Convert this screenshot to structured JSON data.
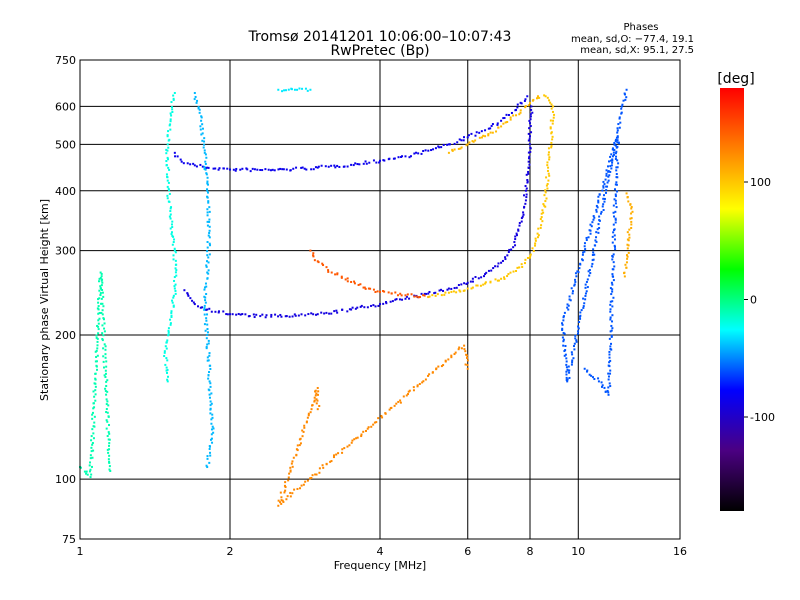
{
  "chart_data": {
    "type": "scatter",
    "title": "Tromsø 20141201 10:06:00–10:07:43",
    "subtitle": "RwPretec (Bp)",
    "xlabel": "Frequency [MHz]",
    "ylabel": "Stationary phase Virtual Height [km]",
    "x_scale": "log",
    "y_scale": "log",
    "xlim": [
      1,
      16
    ],
    "ylim": [
      75,
      750
    ],
    "x_ticks": [
      1,
      2,
      4,
      6,
      8,
      10,
      16
    ],
    "y_ticks": [
      75,
      100,
      200,
      300,
      400,
      500,
      600,
      750
    ],
    "grid": true,
    "stats": {
      "heading": "Phases",
      "line_o": "mean, sd,O: −77.4, 19.1",
      "line_x": "mean, sd,X:  95.1, 27.5"
    },
    "colorbar": {
      "label": "[deg]",
      "range": [
        -180,
        180
      ],
      "ticks": [
        100,
        0,
        -100
      ],
      "colors": [
        "#ff0000",
        "#ff8000",
        "#ffff00",
        "#00ff00",
        "#00ffff",
        "#0000ff",
        "#4b0082",
        "#000000"
      ]
    },
    "series": [
      {
        "points": [
          [
            1.55,
            480
          ],
          [
            1.6,
            460
          ],
          [
            1.7,
            452
          ],
          [
            1.8,
            447
          ],
          [
            2.0,
            443
          ],
          [
            2.3,
            442
          ],
          [
            2.6,
            443
          ],
          [
            3.0,
            447
          ],
          [
            3.5,
            453
          ],
          [
            4.0,
            462
          ],
          [
            4.5,
            472
          ],
          [
            5.0,
            485
          ],
          [
            5.5,
            500
          ],
          [
            6.0,
            517
          ],
          [
            6.5,
            535
          ],
          [
            7.0,
            560
          ],
          [
            7.5,
            590
          ],
          [
            7.9,
            630
          ]
        ],
        "phase": -85
      },
      {
        "points": [
          [
            1.62,
            248
          ],
          [
            1.7,
            232
          ],
          [
            1.8,
            226
          ],
          [
            2.0,
            221
          ],
          [
            2.3,
            219
          ],
          [
            2.6,
            219
          ],
          [
            3.0,
            221
          ],
          [
            3.5,
            226
          ],
          [
            4.0,
            232
          ],
          [
            4.5,
            238
          ],
          [
            5.0,
            244
          ],
          [
            5.5,
            250
          ],
          [
            6.0,
            257
          ],
          [
            6.5,
            268
          ],
          [
            7.0,
            283
          ],
          [
            7.4,
            305
          ],
          [
            7.7,
            345
          ],
          [
            7.85,
            400
          ],
          [
            7.95,
            460
          ],
          [
            8.0,
            520
          ],
          [
            8.05,
            600
          ]
        ],
        "phase": -90
      },
      {
        "points": [
          [
            2.9,
            300
          ],
          [
            3.0,
            285
          ],
          [
            3.2,
            270
          ],
          [
            3.5,
            258
          ],
          [
            3.8,
            250
          ],
          [
            4.0,
            246
          ],
          [
            4.5,
            242
          ],
          [
            5.0,
            240
          ]
        ],
        "phase": 145
      },
      {
        "points": [
          [
            5.0,
            240
          ],
          [
            5.5,
            245
          ],
          [
            6.0,
            250
          ],
          [
            6.5,
            256
          ],
          [
            7.0,
            262
          ],
          [
            7.5,
            272
          ],
          [
            8.0,
            290
          ],
          [
            8.3,
            320
          ],
          [
            8.5,
            360
          ],
          [
            8.65,
            410
          ],
          [
            8.75,
            470
          ],
          [
            8.85,
            530
          ],
          [
            8.9,
            600
          ],
          [
            8.6,
            630
          ],
          [
            8.3,
            625
          ]
        ],
        "phase": 100
      },
      {
        "points": [
          [
            5.5,
            480
          ],
          [
            6.0,
            500
          ],
          [
            6.5,
            520
          ],
          [
            7.0,
            545
          ],
          [
            7.5,
            575
          ],
          [
            8.0,
            610
          ],
          [
            8.3,
            630
          ]
        ],
        "phase": 105
      },
      {
        "points": [
          [
            1.55,
            640
          ],
          [
            1.52,
            580
          ],
          [
            1.5,
            500
          ],
          [
            1.5,
            420
          ],
          [
            1.52,
            350
          ],
          [
            1.55,
            300
          ],
          [
            1.55,
            250
          ],
          [
            1.52,
            210
          ],
          [
            1.48,
            185
          ],
          [
            1.5,
            160
          ]
        ],
        "phase": -20
      },
      {
        "points": [
          [
            1.7,
            640
          ],
          [
            1.75,
            560
          ],
          [
            1.78,
            480
          ],
          [
            1.8,
            400
          ],
          [
            1.82,
            330
          ],
          [
            1.8,
            270
          ],
          [
            1.78,
            230
          ],
          [
            1.8,
            200
          ],
          [
            1.82,
            160
          ],
          [
            1.85,
            125
          ],
          [
            1.8,
            106
          ]
        ],
        "phase": -40
      },
      {
        "points": [
          [
            2.5,
            650
          ],
          [
            2.7,
            650
          ],
          [
            2.9,
            650
          ]
        ],
        "phase": -30
      },
      {
        "points": [
          [
            1.0,
            106
          ],
          [
            1.05,
            101
          ],
          [
            1.1,
            270
          ],
          [
            1.15,
            104
          ]
        ],
        "phase": -10
      },
      {
        "points": [
          [
            12.5,
            395
          ],
          [
            12.6,
            380
          ],
          [
            12.8,
            370
          ],
          [
            12.4,
            265
          ]
        ],
        "phase": 110
      },
      {
        "points": [
          [
            10.3,
            170
          ],
          [
            11.0,
            160
          ],
          [
            11.5,
            150
          ],
          [
            12.0,
            520
          ],
          [
            9.3,
            210
          ],
          [
            9.5,
            160
          ],
          [
            12.5,
            650
          ]
        ],
        "phase": -60
      },
      {
        "points": [
          [
            3.0,
            140
          ],
          [
            3.0,
            155
          ],
          [
            2.5,
            88
          ],
          [
            5.9,
            190
          ],
          [
            6.0,
            170
          ]
        ],
        "phase": 125
      }
    ]
  }
}
